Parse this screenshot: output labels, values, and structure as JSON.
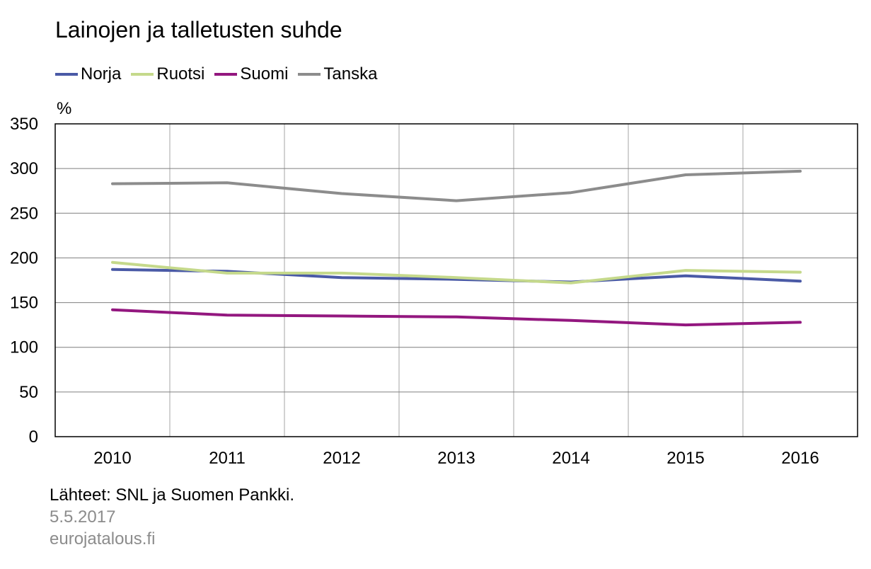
{
  "chart_data": {
    "type": "line",
    "title": "Lainojen ja talletusten  suhde",
    "ylabel": "%",
    "xlabel": "",
    "x": [
      "2010",
      "2011",
      "2012",
      "2013",
      "2014",
      "2015",
      "2016"
    ],
    "ylim": [
      0,
      350
    ],
    "yticks": [
      0,
      50,
      100,
      150,
      200,
      250,
      300,
      350
    ],
    "grid": true,
    "legend_position": "top-left",
    "series": [
      {
        "name": "Norja",
        "color": "#4a5aa6",
        "values": [
          187,
          185,
          178,
          176,
          173,
          180,
          174
        ]
      },
      {
        "name": "Ruotsi",
        "color": "#c5d98b",
        "values": [
          195,
          183,
          183,
          178,
          172,
          186,
          184
        ]
      },
      {
        "name": "Suomi",
        "color": "#93177f",
        "values": [
          142,
          136,
          135,
          134,
          130,
          125,
          128
        ]
      },
      {
        "name": "Tanska",
        "color": "#8c8c8c",
        "values": [
          283,
          284,
          272,
          264,
          273,
          293,
          297
        ]
      }
    ]
  },
  "footer": {
    "source": "Lähteet: SNL ja Suomen Pankki.",
    "date": "5.5.2017",
    "site": "eurojatalous.fi"
  }
}
